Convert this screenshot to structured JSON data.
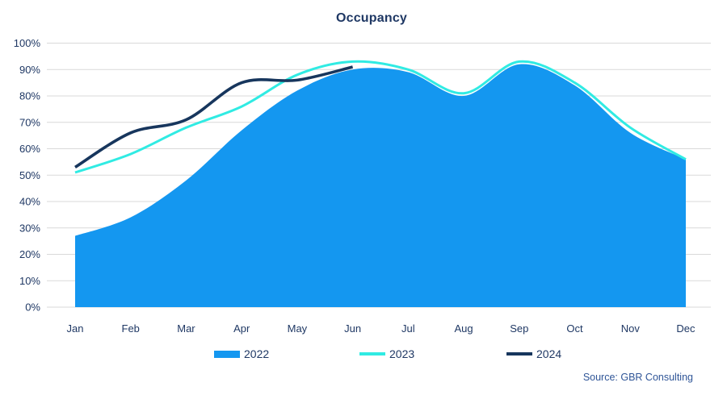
{
  "title": "Occupancy",
  "source": "Source: GBR Consulting",
  "colors": {
    "title": "#1F3864",
    "axis_label": "#1F3864",
    "gridline": "#D9D9D9",
    "source_text": "#2F5597",
    "series_2022": "#1497F0",
    "series_2023": "#30EBE3",
    "series_2024": "#17365D"
  },
  "chart_data": {
    "type": "area",
    "subtype": "smooth area with smooth line overlays",
    "title": "Occupancy",
    "xlabel": "",
    "ylabel": "",
    "categories": [
      "Jan",
      "Feb",
      "Mar",
      "Apr",
      "May",
      "Jun",
      "Jul",
      "Aug",
      "Sep",
      "Oct",
      "Nov",
      "Dec"
    ],
    "series": [
      {
        "name": "2022",
        "type": "area",
        "color": "#1497F0",
        "values": [
          27,
          34,
          48,
          67,
          82,
          90,
          89,
          80,
          92,
          84,
          66,
          56
        ]
      },
      {
        "name": "2023",
        "type": "line",
        "color": "#30EBE3",
        "values": [
          51,
          58,
          68,
          76,
          88,
          93,
          90,
          81,
          93,
          85,
          68,
          56
        ]
      },
      {
        "name": "2024",
        "type": "line",
        "color": "#17365D",
        "values": [
          53,
          66,
          71,
          85,
          86,
          91,
          null,
          null,
          null,
          null,
          null,
          null
        ]
      }
    ],
    "ylim": [
      0,
      100
    ],
    "yticks": [
      "0%",
      "10%",
      "20%",
      "30%",
      "40%",
      "50%",
      "60%",
      "70%",
      "80%",
      "90%",
      "100%"
    ],
    "grid": true,
    "legend_position": "bottom"
  }
}
